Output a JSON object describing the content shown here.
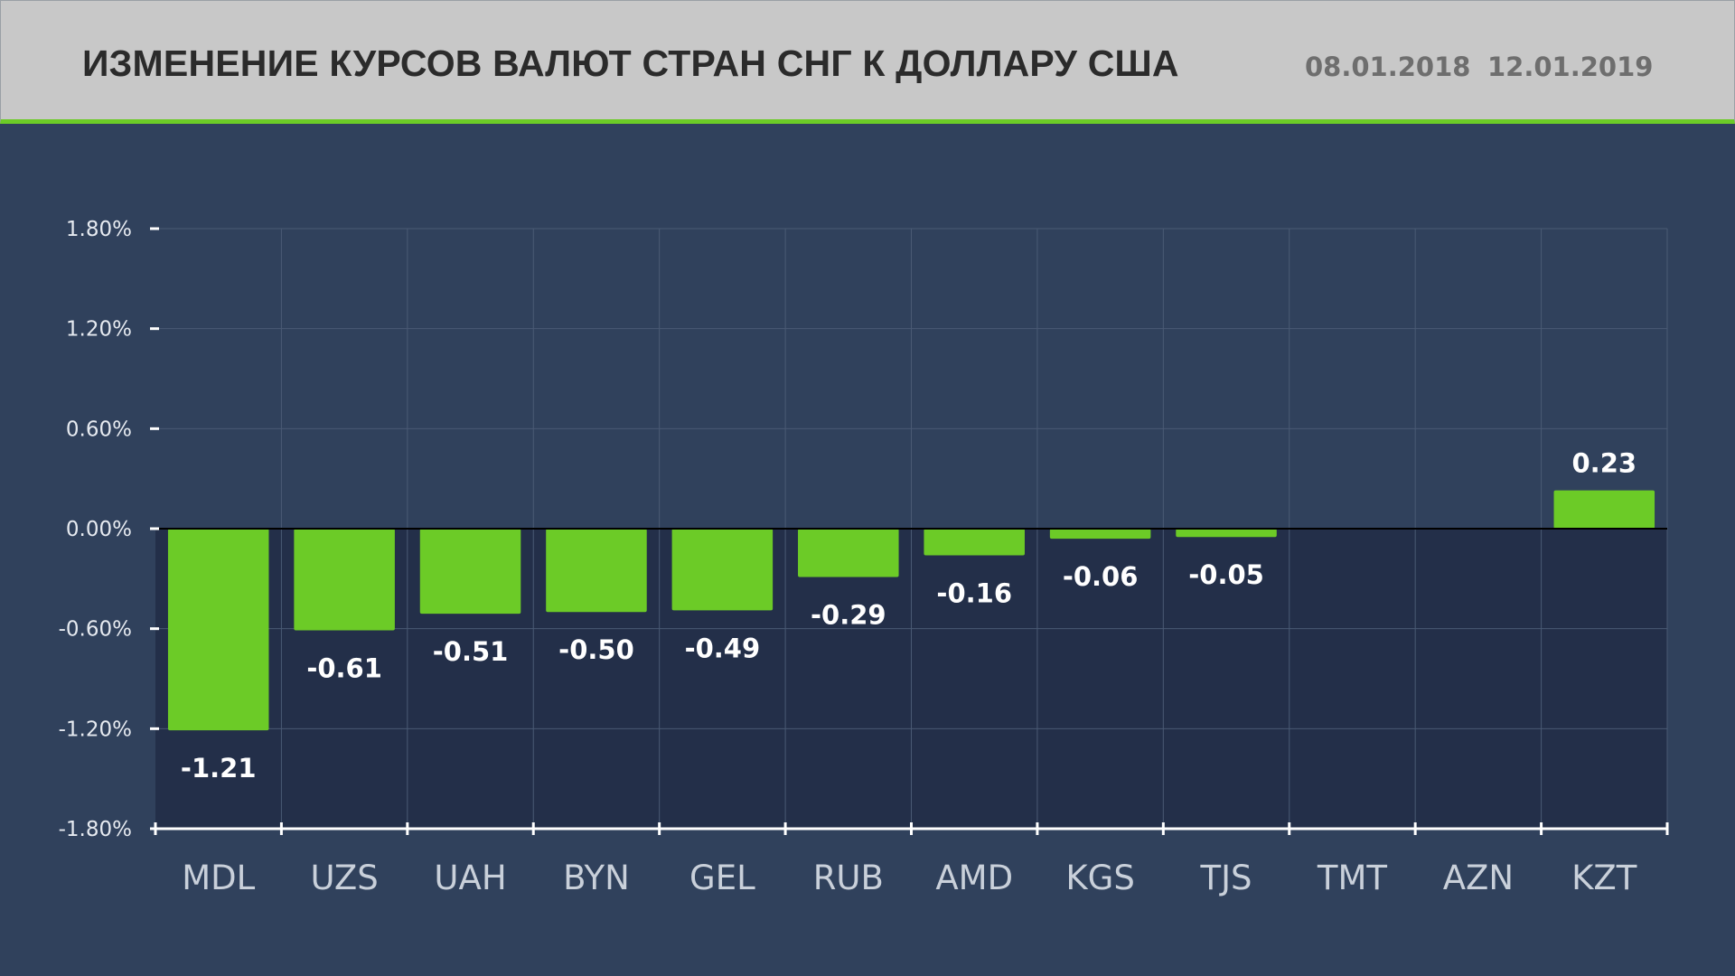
{
  "header": {
    "title": "ИЗМЕНЕНИЕ КУРСОВ ВАЛЮТ СТРАН СНГ К ДОЛЛАРУ США",
    "date_start": "08.01.2018",
    "date_end": "12.01.2019"
  },
  "colors": {
    "header_bg": "#c8c8c8",
    "accent": "#6ccb27",
    "background": "#30415c",
    "negative_zone": "#232f49"
  },
  "chart_data": {
    "type": "bar",
    "categories": [
      "MDL",
      "UZS",
      "UAH",
      "BYN",
      "GEL",
      "RUB",
      "AMD",
      "KGS",
      "TJS",
      "TMT",
      "AZN",
      "KZT"
    ],
    "values": [
      -1.21,
      -0.61,
      -0.51,
      -0.5,
      -0.49,
      -0.29,
      -0.16,
      -0.06,
      -0.05,
      0,
      0,
      0.23
    ],
    "value_labels": [
      "-1.21",
      "-0.61",
      "-0.51",
      "-0.50",
      "-0.49",
      "-0.29",
      "-0.16",
      "-0.06",
      "-0.05",
      "",
      "",
      "0.23"
    ],
    "y_ticks": [
      1.8,
      1.2,
      0.6,
      0.0,
      -0.6,
      -1.2,
      -1.8
    ],
    "y_tick_labels": [
      "1.80%",
      "1.20%",
      "0.60%",
      "0.00%",
      "-0.60%",
      "-1.20%",
      "-1.80%"
    ],
    "ylim": [
      -1.8,
      1.8
    ],
    "grid": true,
    "legend": "none"
  }
}
